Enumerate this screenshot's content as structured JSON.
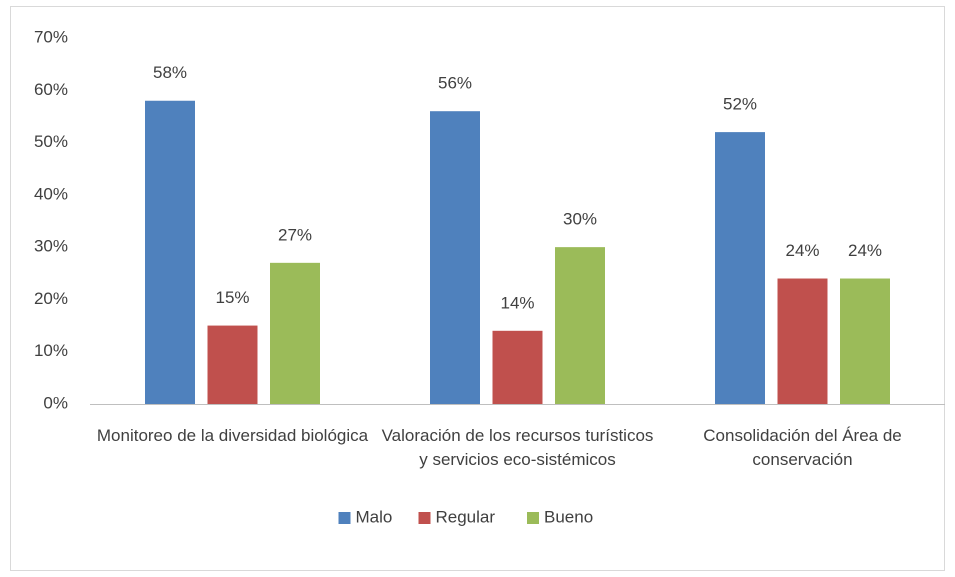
{
  "chart_data": {
    "type": "bar",
    "categories": [
      "Monitoreo de la diversidad biológica",
      "Valoración de los recursos turísticos y servicios eco-sistémicos",
      "Consolidación del Área de conservación"
    ],
    "series": [
      {
        "name": "Malo",
        "color": "#4f81bd",
        "values": [
          58,
          56,
          52
        ],
        "value_labels": [
          "58%",
          "56%",
          "52%"
        ]
      },
      {
        "name": "Regular",
        "color": "#c0504d",
        "values": [
          15,
          14,
          24
        ],
        "value_labels": [
          "15%",
          "14%",
          "24%"
        ]
      },
      {
        "name": "Bueno",
        "color": "#9bbb59",
        "values": [
          27,
          30,
          24
        ],
        "value_labels": [
          "27%",
          "30%",
          "24%"
        ]
      }
    ],
    "ylim": [
      0,
      70
    ],
    "yticks": [
      {
        "value": 0,
        "label": "0%"
      },
      {
        "value": 10,
        "label": "10%"
      },
      {
        "value": 20,
        "label": "20%"
      },
      {
        "value": 30,
        "label": "30%"
      },
      {
        "value": 40,
        "label": "40%"
      },
      {
        "value": 50,
        "label": "50%"
      },
      {
        "value": 60,
        "label": "60%"
      },
      {
        "value": 70,
        "label": "70%"
      }
    ],
    "grid": false,
    "legend": "bottom"
  }
}
